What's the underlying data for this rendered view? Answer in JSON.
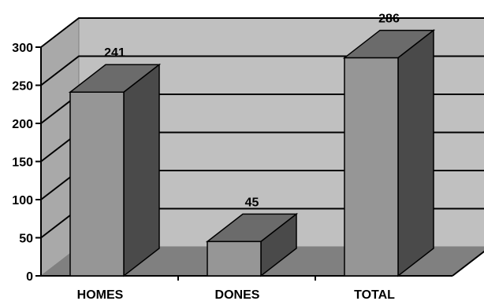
{
  "chart_data": {
    "type": "bar",
    "style": "3d",
    "categories": [
      "HOMES",
      "DONES",
      "TOTAL"
    ],
    "values": [
      241,
      45,
      286
    ],
    "data_labels": [
      "241",
      "45",
      "286"
    ],
    "ylim": [
      0,
      300
    ],
    "yticks": [
      0,
      50,
      100,
      150,
      200,
      250,
      300
    ],
    "ytick_labels": [
      "0",
      "50",
      "100",
      "150",
      "200",
      "250",
      "300"
    ],
    "grid": true,
    "legend": "none",
    "title": "",
    "xlabel": "",
    "ylabel": ""
  },
  "colors": {
    "back_wall": "#c0c0c0",
    "side_wall": "#a9a9a9",
    "floor": "#808080",
    "bar_front": "#969696",
    "bar_top": "#6b6b6b",
    "bar_side": "#4a4a4a",
    "gridline": "#000000"
  }
}
